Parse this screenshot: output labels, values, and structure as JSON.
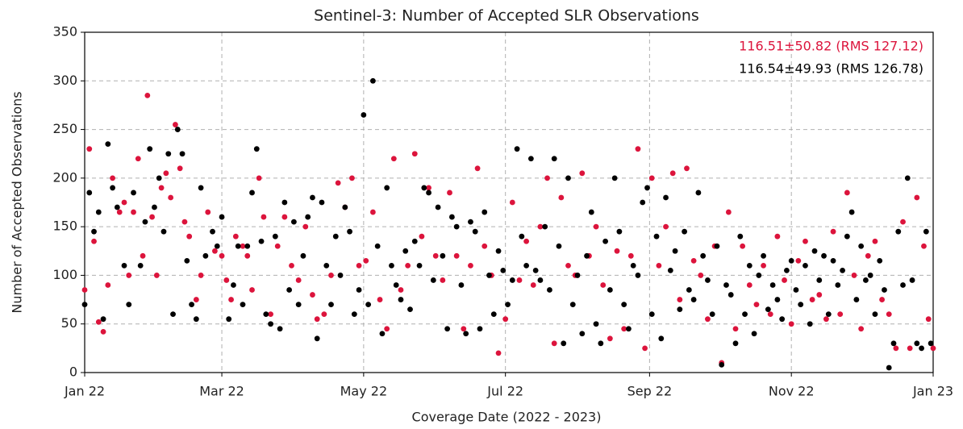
{
  "chart_data": {
    "type": "scatter",
    "title": "Sentinel-3: Number of Accepted SLR Observations",
    "x_label": "Coverage Date (2022 - 2023)",
    "y_label": "Number of Accepted Observations",
    "annotations": [
      {
        "text": "116.51±50.82 (RMS 127.12)",
        "color": "#dc143c"
      },
      {
        "text": "116.54±49.93 (RMS 126.78)",
        "color": "#000000"
      }
    ],
    "xlim": [
      0,
      365
    ],
    "xticks": [
      {
        "value": 0,
        "label": "Jan 22"
      },
      {
        "value": 59,
        "label": "Mar 22"
      },
      {
        "value": 120,
        "label": "May 22"
      },
      {
        "value": 181,
        "label": "Jul 22"
      },
      {
        "value": 243,
        "label": "Sep 22"
      },
      {
        "value": 304,
        "label": "Nov 22"
      },
      {
        "value": 365,
        "label": "Jan 23"
      }
    ],
    "ylim": [
      0,
      350
    ],
    "yticks": [
      0,
      50,
      100,
      150,
      200,
      250,
      300,
      350
    ],
    "grid": true,
    "series": [
      {
        "color": "#dc143c",
        "x": [
          0,
          2,
          4,
          6,
          8,
          10,
          12,
          15,
          17,
          19,
          21,
          23,
          25,
          27,
          29,
          31,
          33,
          35,
          37,
          39,
          41,
          43,
          45,
          48,
          50,
          53,
          56,
          59,
          61,
          63,
          65,
          68,
          70,
          72,
          75,
          77,
          80,
          83,
          86,
          89,
          92,
          95,
          98,
          100,
          103,
          106,
          109,
          112,
          115,
          118,
          121,
          124,
          127,
          130,
          133,
          136,
          139,
          142,
          145,
          148,
          151,
          154,
          157,
          160,
          163,
          166,
          169,
          172,
          175,
          178,
          181,
          184,
          187,
          190,
          193,
          196,
          199,
          202,
          205,
          208,
          211,
          214,
          217,
          220,
          223,
          226,
          229,
          232,
          235,
          238,
          241,
          244,
          247,
          250,
          253,
          256,
          259,
          262,
          265,
          268,
          271,
          274,
          277,
          280,
          283,
          286,
          289,
          292,
          295,
          298,
          301,
          304,
          307,
          310,
          313,
          316,
          319,
          322,
          325,
          328,
          331,
          334,
          337,
          340,
          343,
          346,
          349,
          352,
          355,
          358,
          361,
          363,
          365
        ],
        "values": [
          85,
          230,
          135,
          52,
          42,
          90,
          200,
          165,
          175,
          100,
          165,
          220,
          120,
          285,
          160,
          100,
          190,
          205,
          180,
          255,
          210,
          155,
          140,
          75,
          100,
          165,
          125,
          120,
          95,
          75,
          140,
          130,
          120,
          85,
          200,
          160,
          60,
          130,
          160,
          110,
          95,
          150,
          80,
          55,
          60,
          100,
          195,
          170,
          200,
          110,
          115,
          165,
          75,
          45,
          220,
          85,
          110,
          225,
          140,
          190,
          120,
          95,
          185,
          120,
          45,
          110,
          210,
          130,
          100,
          20,
          55,
          175,
          95,
          135,
          90,
          150,
          200,
          30,
          180,
          110,
          100,
          205,
          120,
          150,
          90,
          35,
          125,
          45,
          120,
          230,
          25,
          200,
          110,
          150,
          205,
          75,
          210,
          115,
          100,
          55,
          130,
          10,
          165,
          45,
          130,
          90,
          70,
          110,
          60,
          140,
          95,
          50,
          115,
          135,
          75,
          80,
          55,
          145,
          60,
          185,
          100,
          45,
          120,
          135,
          75,
          60,
          25,
          155,
          25,
          180,
          130,
          55,
          25
        ]
      },
      {
        "color": "#000000",
        "x": [
          0,
          2,
          4,
          6,
          8,
          10,
          12,
          14,
          17,
          19,
          21,
          24,
          26,
          28,
          30,
          32,
          34,
          36,
          38,
          40,
          42,
          44,
          46,
          48,
          50,
          52,
          55,
          57,
          59,
          62,
          64,
          66,
          68,
          70,
          72,
          74,
          76,
          78,
          80,
          82,
          84,
          86,
          88,
          90,
          92,
          94,
          96,
          98,
          100,
          102,
          104,
          106,
          108,
          110,
          112,
          114,
          116,
          118,
          120,
          122,
          124,
          126,
          128,
          130,
          132,
          134,
          136,
          138,
          140,
          142,
          144,
          146,
          148,
          150,
          152,
          154,
          156,
          158,
          160,
          162,
          164,
          166,
          168,
          170,
          172,
          174,
          176,
          178,
          180,
          182,
          184,
          186,
          188,
          190,
          192,
          194,
          196,
          198,
          200,
          202,
          204,
          206,
          208,
          210,
          212,
          214,
          216,
          218,
          220,
          222,
          224,
          226,
          228,
          230,
          232,
          234,
          236,
          238,
          240,
          242,
          244,
          246,
          248,
          250,
          252,
          254,
          256,
          258,
          260,
          262,
          264,
          266,
          268,
          270,
          272,
          274,
          276,
          278,
          280,
          282,
          284,
          286,
          288,
          290,
          292,
          294,
          296,
          298,
          300,
          302,
          304,
          306,
          308,
          310,
          312,
          314,
          316,
          318,
          320,
          322,
          324,
          326,
          328,
          330,
          332,
          334,
          336,
          338,
          340,
          342,
          344,
          346,
          348,
          350,
          352,
          354,
          356,
          358,
          360,
          362,
          364
        ],
        "values": [
          70,
          185,
          145,
          165,
          55,
          235,
          190,
          170,
          110,
          70,
          185,
          110,
          155,
          230,
          170,
          200,
          145,
          225,
          60,
          250,
          225,
          115,
          70,
          55,
          190,
          120,
          145,
          130,
          160,
          55,
          90,
          130,
          70,
          130,
          185,
          230,
          135,
          60,
          50,
          140,
          45,
          175,
          85,
          155,
          70,
          120,
          160,
          180,
          35,
          175,
          110,
          70,
          140,
          100,
          170,
          145,
          60,
          85,
          265,
          70,
          300,
          130,
          40,
          190,
          110,
          90,
          75,
          125,
          65,
          135,
          110,
          190,
          185,
          95,
          170,
          120,
          45,
          160,
          150,
          90,
          40,
          155,
          145,
          45,
          165,
          100,
          60,
          125,
          105,
          70,
          95,
          230,
          140,
          110,
          220,
          105,
          95,
          150,
          85,
          220,
          130,
          30,
          200,
          70,
          100,
          40,
          120,
          165,
          50,
          30,
          135,
          85,
          200,
          145,
          70,
          45,
          110,
          100,
          175,
          190,
          60,
          140,
          35,
          180,
          105,
          125,
          65,
          145,
          85,
          75,
          185,
          120,
          95,
          60,
          130,
          8,
          90,
          80,
          30,
          140,
          60,
          110,
          40,
          100,
          120,
          65,
          90,
          75,
          55,
          105,
          115,
          85,
          70,
          110,
          50,
          125,
          95,
          120,
          60,
          115,
          90,
          105,
          140,
          165,
          75,
          130,
          95,
          100,
          60,
          115,
          85,
          5,
          30,
          145,
          90,
          200,
          95,
          30,
          25,
          145,
          30
        ]
      }
    ]
  }
}
